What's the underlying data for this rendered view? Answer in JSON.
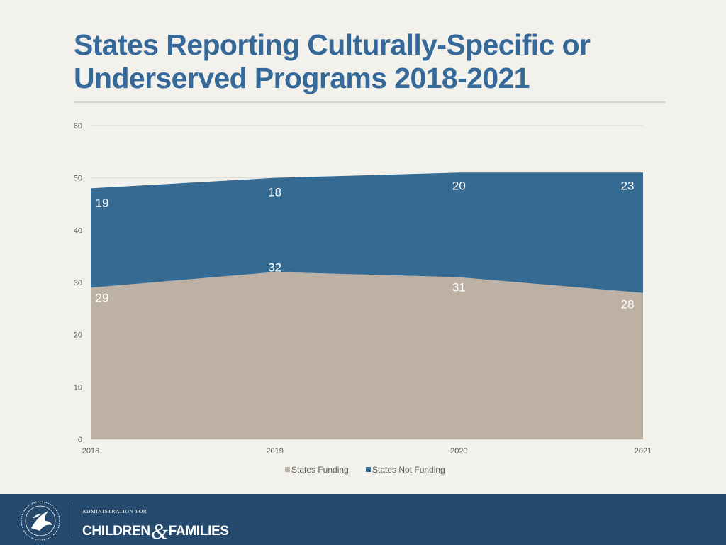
{
  "slide": {
    "title": "States Reporting Culturally-Specific or Underserved Programs 2018-2021"
  },
  "colors": {
    "title": "#35699a",
    "rule": "#d7d4ce",
    "funding": "#bdb1a5",
    "not_funding": "#356a93",
    "axis_text": "#595959",
    "gridline": "#dcdad5",
    "footer": "#264a6d"
  },
  "chart_data": {
    "type": "area",
    "stacked": true,
    "x": [
      "2018",
      "2019",
      "2020",
      "2021"
    ],
    "series": [
      {
        "name": "States Funding",
        "values": [
          29,
          32,
          31,
          28
        ]
      },
      {
        "name": "States Not Funding",
        "values": [
          19,
          18,
          20,
          23
        ]
      }
    ],
    "ylim": [
      0,
      60
    ],
    "yticks": [
      0,
      10,
      20,
      30,
      40,
      50,
      60
    ],
    "title": "",
    "xlabel": "",
    "ylabel": "",
    "grid": true,
    "legend": "bottom"
  },
  "footer": {
    "agency_top": "ADMINISTRATION FOR",
    "agency_left": "CHILDREN",
    "agency_amp": "&",
    "agency_right": "FAMILIES",
    "seal_icon": "hhs-eagle-seal-icon"
  }
}
